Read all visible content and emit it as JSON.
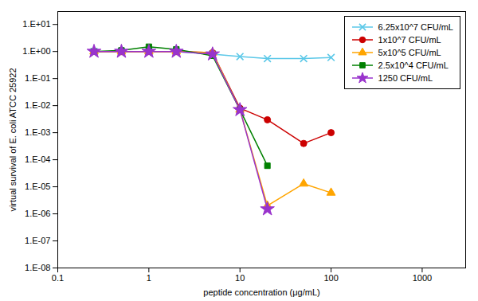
{
  "chart_data": {
    "type": "line",
    "xlabel": "peptide concentration (μg/mL)",
    "ylabel": "virtual survival of E. coli ATCC 25922",
    "log": true,
    "xlim": [
      0.1,
      3000
    ],
    "ylim": [
      1e-08,
      30
    ],
    "xticks": [
      0.1,
      1,
      10,
      100,
      1000
    ],
    "yticks": [
      {
        "value": 10,
        "label": "1.E+01"
      },
      {
        "value": 1,
        "label": "1.E+00"
      },
      {
        "value": 0.1,
        "label": "1.E-01"
      },
      {
        "value": 0.01,
        "label": "1.E-02"
      },
      {
        "value": 0.001,
        "label": "1.E-03"
      },
      {
        "value": 0.0001,
        "label": "1.E-04"
      },
      {
        "value": 1e-05,
        "label": "1.E-05"
      },
      {
        "value": 1e-06,
        "label": "1.E-06"
      },
      {
        "value": 1e-07,
        "label": "1.E-07"
      },
      {
        "value": 1e-08,
        "label": "1.E-08"
      }
    ],
    "grid": false,
    "legend": "upper right",
    "series": [
      {
        "name": "6.25x10^7 CFU/mL",
        "color": "#5BC8E8",
        "marker": "x",
        "x": [
          0.25,
          0.5,
          1.0,
          2.0,
          5.0,
          10.0,
          20.0,
          50.0,
          100.0
        ],
        "values": [
          1.0,
          1.0,
          1.0,
          1.0,
          0.8,
          0.65,
          0.55,
          0.55,
          0.6
        ]
      },
      {
        "name": "1x10^7 CFU/mL",
        "color": "#CC0000",
        "marker": "o",
        "x": [
          0.25,
          0.5,
          1.0,
          2.0,
          5.0,
          10.0,
          20.0,
          50.0,
          100.0
        ],
        "values": [
          1.0,
          1.0,
          1.0,
          1.0,
          0.9,
          0.008,
          0.003,
          0.0004,
          0.001
        ]
      },
      {
        "name": "5x10^5 CFU/mL",
        "color": "#FFA500",
        "marker": "^",
        "x": [
          0.25,
          0.5,
          1.0,
          2.0,
          5.0,
          10.0,
          20.0,
          50.0,
          100.0
        ],
        "values": [
          1.0,
          1.0,
          1.0,
          1.0,
          0.9,
          0.007,
          2e-06,
          1.3e-05,
          6e-06
        ]
      },
      {
        "name": "2.5x10^4 CFU/mL",
        "color": "#008000",
        "marker": "s",
        "x": [
          0.25,
          0.5,
          1.0,
          2.0,
          5.0,
          10.0,
          20.0
        ],
        "values": [
          1.0,
          1.1,
          1.5,
          1.2,
          0.7,
          0.007,
          6e-05
        ]
      },
      {
        "name": "1250 CFU/mL",
        "color": "#9933CC",
        "marker": "*",
        "x": [
          0.25,
          0.5,
          1.0,
          2.0,
          5.0,
          10.0,
          20.0
        ],
        "values": [
          1.0,
          1.0,
          1.0,
          1.0,
          0.8,
          0.007,
          1.5e-06
        ]
      }
    ]
  }
}
